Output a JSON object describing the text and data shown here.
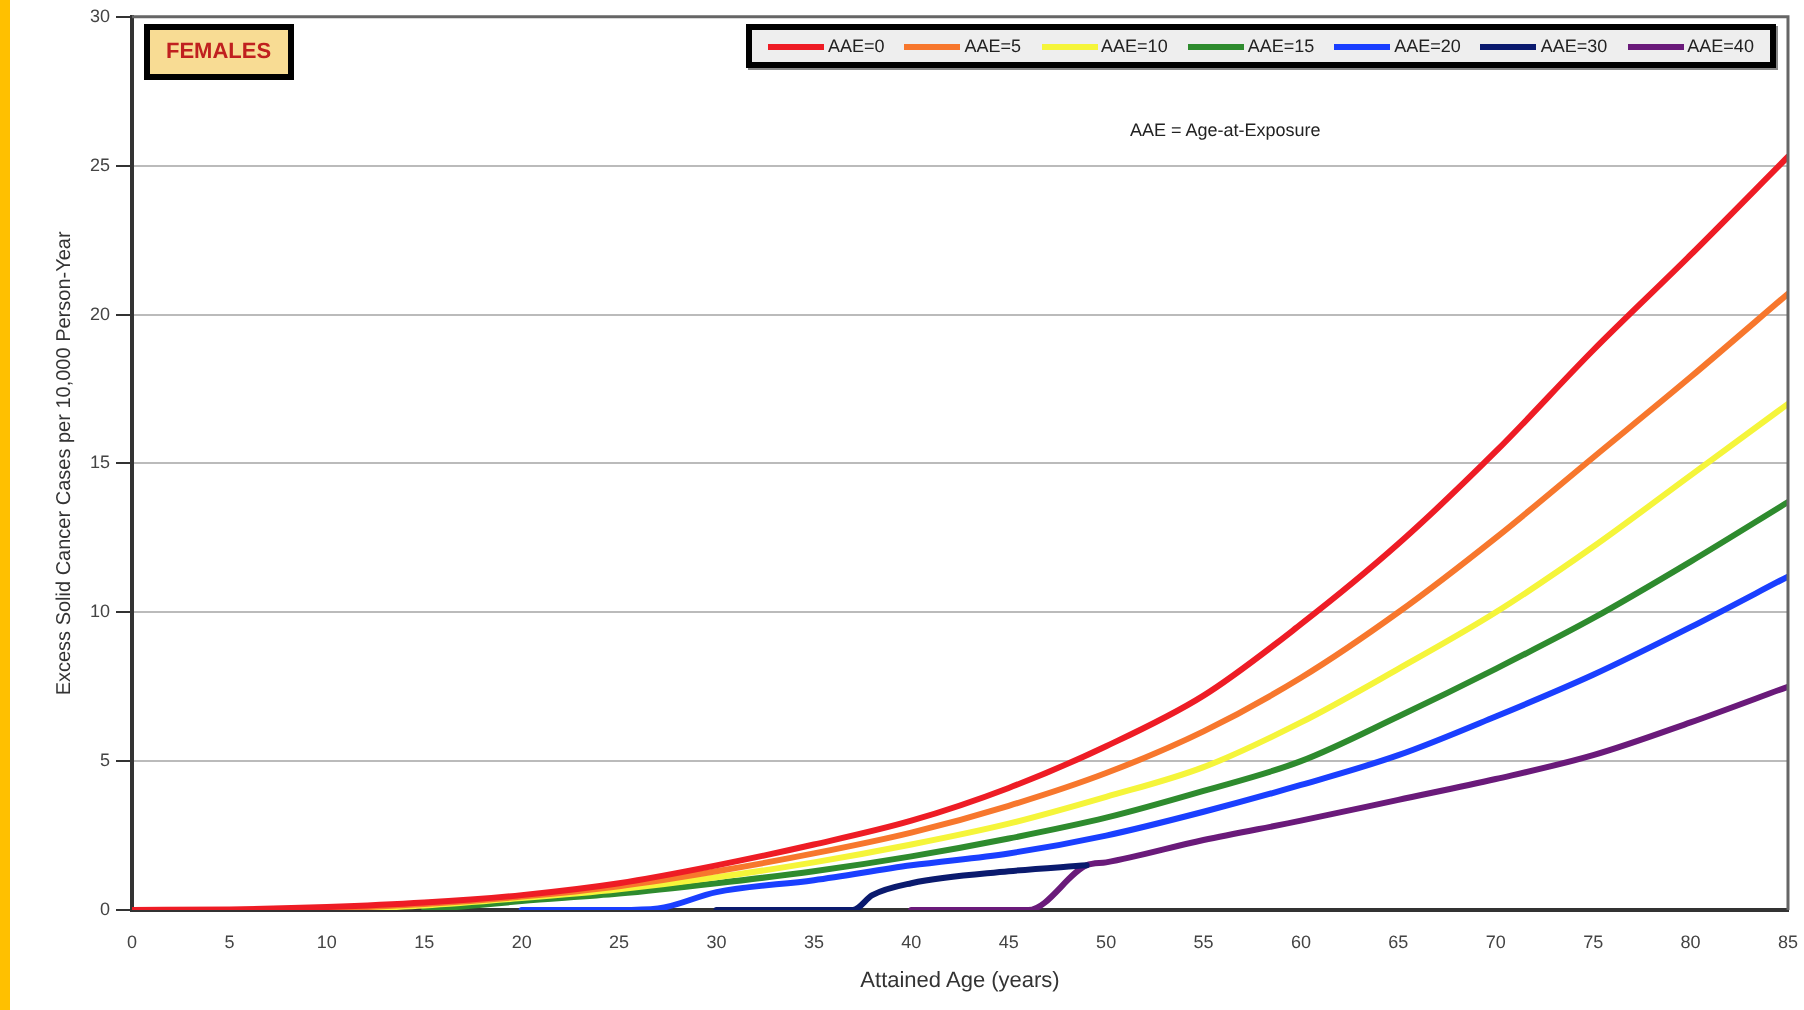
{
  "chart_data": {
    "type": "line",
    "xlabel": "Attained Age (years)",
    "ylabel": "Excess Solid Cancer Cases per 10,000 Person-Year",
    "annotations": [
      "FEMALES",
      "AAE = Age-at-Exposure"
    ],
    "xlim": [
      0,
      85
    ],
    "xticks": [
      0,
      5,
      10,
      15,
      20,
      25,
      30,
      35,
      40,
      45,
      50,
      55,
      60,
      65,
      70,
      75,
      80,
      85
    ],
    "ylim": [
      0,
      30
    ],
    "yticks": [
      0,
      5,
      10,
      15,
      20,
      25,
      30
    ],
    "grid": "y",
    "legend": "top right",
    "series": [
      {
        "name": "AAE=0",
        "color": "#ee1c25",
        "x": [
          0,
          5,
          10,
          15,
          20,
          25,
          30,
          35,
          40,
          45,
          50,
          55,
          60,
          65,
          70,
          75,
          80,
          85
        ],
        "values": [
          0,
          0.02,
          0.1,
          0.25,
          0.5,
          0.9,
          1.5,
          2.2,
          3.0,
          4.1,
          5.5,
          7.2,
          9.6,
          12.3,
          15.4,
          18.8,
          22.0,
          25.3
        ]
      },
      {
        "name": "AAE=5",
        "color": "#f7772d",
        "x": [
          5,
          10,
          15,
          20,
          25,
          30,
          35,
          40,
          45,
          50,
          55,
          60,
          65,
          70,
          75,
          80,
          85
        ],
        "values": [
          0,
          0.05,
          0.2,
          0.45,
          0.8,
          1.3,
          1.9,
          2.6,
          3.5,
          4.6,
          6.0,
          7.8,
          10.0,
          12.5,
          15.2,
          17.9,
          20.7
        ]
      },
      {
        "name": "AAE=10",
        "color": "#f5f53a",
        "x": [
          10,
          15,
          20,
          25,
          30,
          35,
          40,
          45,
          50,
          55,
          60,
          65,
          70,
          75,
          80,
          85
        ],
        "values": [
          0,
          0.15,
          0.4,
          0.7,
          1.1,
          1.6,
          2.2,
          2.9,
          3.8,
          4.8,
          6.3,
          8.1,
          10.0,
          12.2,
          14.6,
          17.0
        ]
      },
      {
        "name": "AAE=15",
        "color": "#2e8b2e",
        "x": [
          15,
          20,
          25,
          30,
          35,
          40,
          45,
          50,
          55,
          60,
          65,
          70,
          75,
          80,
          85
        ],
        "values": [
          0,
          0.3,
          0.55,
          0.9,
          1.3,
          1.8,
          2.4,
          3.1,
          4.0,
          5.0,
          6.5,
          8.1,
          9.8,
          11.7,
          13.7
        ]
      },
      {
        "name": "AAE=20",
        "color": "#1a3fff",
        "x": [
          20,
          25,
          27,
          30,
          35,
          40,
          45,
          50,
          55,
          60,
          65,
          70,
          75,
          80,
          85
        ],
        "values": [
          0,
          0,
          0.05,
          0.6,
          1.0,
          1.5,
          1.9,
          2.5,
          3.3,
          4.2,
          5.2,
          6.5,
          7.9,
          9.5,
          11.2
        ]
      },
      {
        "name": "AAE=30",
        "color": "#0a1a6e",
        "x": [
          30,
          37,
          38,
          40,
          45,
          49
        ],
        "values": [
          0,
          0,
          0.5,
          0.9,
          1.3,
          1.5
        ]
      },
      {
        "name": "AAE=40",
        "color": "#6a1a7a",
        "x": [
          40,
          46,
          49,
          50,
          55,
          60,
          65,
          70,
          75,
          80,
          85
        ],
        "values": [
          0,
          0,
          1.5,
          1.6,
          2.35,
          3.0,
          3.7,
          4.4,
          5.2,
          6.3,
          7.5
        ]
      }
    ]
  }
}
